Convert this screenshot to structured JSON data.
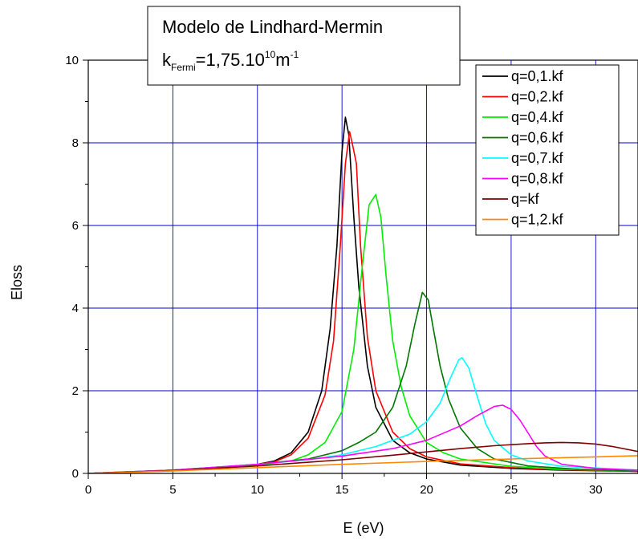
{
  "chart_data": {
    "type": "line",
    "title": "Modelo de Lindhard-Mermin",
    "subtitle": {
      "prefix": "k",
      "sub": "Fermi",
      "mid": "=1,75.10",
      "sup1": "10",
      "unit": "m",
      "sup2": "-1"
    },
    "xlabel": "E (eV)",
    "ylabel": "Eloss",
    "xlim": [
      0,
      32.5
    ],
    "ylim": [
      0,
      10
    ],
    "xticks": [
      0,
      5,
      10,
      15,
      20,
      25,
      30
    ],
    "yticks": [
      0,
      2,
      4,
      6,
      8,
      10
    ],
    "grid": true,
    "legend_position": "top-right",
    "series": [
      {
        "name": "q=0,1.kf",
        "color": "#000000",
        "points": [
          [
            0,
            0
          ],
          [
            4,
            0.06
          ],
          [
            8,
            0.14
          ],
          [
            10,
            0.22
          ],
          [
            11,
            0.3
          ],
          [
            12,
            0.5
          ],
          [
            13,
            1.0
          ],
          [
            13.8,
            2.0
          ],
          [
            14.3,
            3.5
          ],
          [
            14.7,
            5.5
          ],
          [
            15.0,
            7.8
          ],
          [
            15.2,
            8.62
          ],
          [
            15.4,
            8.2
          ],
          [
            15.7,
            6.2
          ],
          [
            16.0,
            4.5
          ],
          [
            16.5,
            2.6
          ],
          [
            17,
            1.6
          ],
          [
            18,
            0.8
          ],
          [
            19,
            0.5
          ],
          [
            20,
            0.35
          ],
          [
            22,
            0.2
          ],
          [
            25,
            0.12
          ],
          [
            28,
            0.08
          ],
          [
            32.5,
            0.05
          ]
        ]
      },
      {
        "name": "q=0,2.kf",
        "color": "#ff0000",
        "points": [
          [
            0,
            0
          ],
          [
            4,
            0.06
          ],
          [
            8,
            0.14
          ],
          [
            10,
            0.22
          ],
          [
            11,
            0.28
          ],
          [
            12,
            0.45
          ],
          [
            13,
            0.85
          ],
          [
            14,
            1.9
          ],
          [
            14.5,
            3.2
          ],
          [
            14.9,
            5.5
          ],
          [
            15.2,
            7.5
          ],
          [
            15.45,
            8.27
          ],
          [
            15.6,
            8.0
          ],
          [
            15.85,
            7.5
          ],
          [
            16.1,
            5.5
          ],
          [
            16.5,
            3.3
          ],
          [
            17,
            2.0
          ],
          [
            18,
            1.0
          ],
          [
            19,
            0.6
          ],
          [
            20,
            0.4
          ],
          [
            22,
            0.23
          ],
          [
            25,
            0.14
          ],
          [
            28,
            0.09
          ],
          [
            32.5,
            0.05
          ]
        ]
      },
      {
        "name": "q=0,4.kf",
        "color": "#00ee00",
        "points": [
          [
            0,
            0
          ],
          [
            5,
            0.08
          ],
          [
            10,
            0.2
          ],
          [
            12,
            0.3
          ],
          [
            13,
            0.45
          ],
          [
            14,
            0.75
          ],
          [
            15,
            1.5
          ],
          [
            15.7,
            3.0
          ],
          [
            16.2,
            5.0
          ],
          [
            16.6,
            6.5
          ],
          [
            17.0,
            6.75
          ],
          [
            17.3,
            6.2
          ],
          [
            17.6,
            4.8
          ],
          [
            18,
            3.2
          ],
          [
            18.5,
            2.1
          ],
          [
            19,
            1.4
          ],
          [
            20,
            0.75
          ],
          [
            21,
            0.5
          ],
          [
            22,
            0.35
          ],
          [
            25,
            0.17
          ],
          [
            28,
            0.1
          ],
          [
            32.5,
            0.06
          ]
        ]
      },
      {
        "name": "q=0,6.kf",
        "color": "#007700",
        "points": [
          [
            0,
            0
          ],
          [
            5,
            0.08
          ],
          [
            10,
            0.22
          ],
          [
            13,
            0.35
          ],
          [
            15,
            0.55
          ],
          [
            16,
            0.75
          ],
          [
            17,
            1.0
          ],
          [
            18,
            1.6
          ],
          [
            18.8,
            2.6
          ],
          [
            19.3,
            3.6
          ],
          [
            19.75,
            4.38
          ],
          [
            20.1,
            4.2
          ],
          [
            20.4,
            3.5
          ],
          [
            20.8,
            2.6
          ],
          [
            21.3,
            1.8
          ],
          [
            22,
            1.1
          ],
          [
            23,
            0.6
          ],
          [
            24,
            0.35
          ],
          [
            26,
            0.18
          ],
          [
            29,
            0.1
          ],
          [
            32.5,
            0.06
          ]
        ]
      },
      {
        "name": "q=0,7.kf",
        "color": "#00ffff",
        "points": [
          [
            0,
            0
          ],
          [
            5,
            0.08
          ],
          [
            10,
            0.22
          ],
          [
            13,
            0.33
          ],
          [
            15,
            0.45
          ],
          [
            17,
            0.65
          ],
          [
            19,
            0.95
          ],
          [
            20,
            1.25
          ],
          [
            20.8,
            1.7
          ],
          [
            21.4,
            2.3
          ],
          [
            21.9,
            2.75
          ],
          [
            22.1,
            2.8
          ],
          [
            22.5,
            2.55
          ],
          [
            23,
            1.85
          ],
          [
            23.5,
            1.2
          ],
          [
            24,
            0.8
          ],
          [
            25,
            0.45
          ],
          [
            26,
            0.3
          ],
          [
            28,
            0.17
          ],
          [
            32.5,
            0.08
          ]
        ]
      },
      {
        "name": "q=0,8.kf",
        "color": "#ff00ff",
        "points": [
          [
            0,
            0
          ],
          [
            5,
            0.08
          ],
          [
            10,
            0.22
          ],
          [
            15,
            0.42
          ],
          [
            18,
            0.6
          ],
          [
            20,
            0.8
          ],
          [
            22,
            1.15
          ],
          [
            23,
            1.4
          ],
          [
            24,
            1.62
          ],
          [
            24.5,
            1.65
          ],
          [
            25,
            1.55
          ],
          [
            25.5,
            1.3
          ],
          [
            26,
            0.98
          ],
          [
            26.5,
            0.65
          ],
          [
            27,
            0.42
          ],
          [
            28,
            0.22
          ],
          [
            30,
            0.12
          ],
          [
            32.5,
            0.08
          ]
        ]
      },
      {
        "name": "q=kf",
        "color": "#800000",
        "points": [
          [
            0,
            0
          ],
          [
            5,
            0.07
          ],
          [
            10,
            0.18
          ],
          [
            15,
            0.33
          ],
          [
            18,
            0.44
          ],
          [
            20,
            0.52
          ],
          [
            22,
            0.6
          ],
          [
            24,
            0.67
          ],
          [
            26,
            0.72
          ],
          [
            27,
            0.74
          ],
          [
            28,
            0.75
          ],
          [
            29,
            0.74
          ],
          [
            30,
            0.71
          ],
          [
            31,
            0.65
          ],
          [
            32.5,
            0.53
          ]
        ]
      },
      {
        "name": "q=1,2.kf",
        "color": "#ff8800",
        "points": [
          [
            0,
            0
          ],
          [
            5,
            0.06
          ],
          [
            10,
            0.14
          ],
          [
            15,
            0.22
          ],
          [
            20,
            0.29
          ],
          [
            25,
            0.35
          ],
          [
            28,
            0.38
          ],
          [
            30,
            0.4
          ],
          [
            32.5,
            0.43
          ]
        ]
      }
    ]
  }
}
